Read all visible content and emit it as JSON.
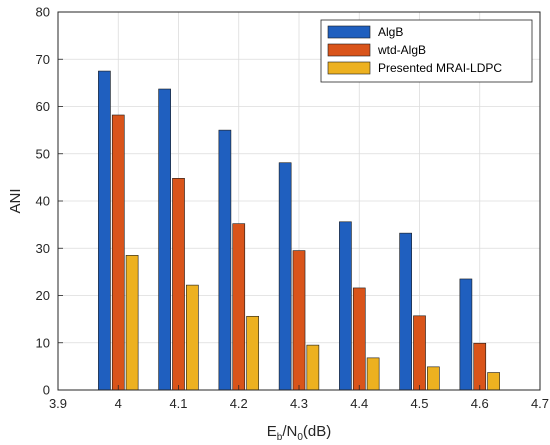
{
  "chart_data": {
    "type": "bar",
    "xlabel_main": "E",
    "xlabel_sub1": "b",
    "xlabel_mid": "/N",
    "xlabel_sub2": "0",
    "xlabel_unit": "(dB)",
    "ylabel": "ANI",
    "xlim": [
      3.9,
      4.7
    ],
    "ylim": [
      0,
      80
    ],
    "x_ticks": [
      "3.9",
      "4",
      "4.1",
      "4.2",
      "4.3",
      "4.4",
      "4.5",
      "4.6",
      "4.7"
    ],
    "y_ticks": [
      "0",
      "10",
      "20",
      "30",
      "40",
      "50",
      "60",
      "70",
      "80"
    ],
    "grid": true,
    "legend_position": "top-right",
    "categories": [
      4.0,
      4.1,
      4.2,
      4.3,
      4.4,
      4.5,
      4.6
    ],
    "series": [
      {
        "name": "AlgB",
        "color": "#1f5fbf",
        "values": [
          67.5,
          63.7,
          55.0,
          48.1,
          35.6,
          33.2,
          23.5
        ]
      },
      {
        "name": "wtd-AlgB",
        "color": "#d9541a",
        "values": [
          58.2,
          44.8,
          35.2,
          29.5,
          21.6,
          15.7,
          9.9
        ]
      },
      {
        "name": "Presented MRAI-LDPC",
        "color": "#edb120",
        "values": [
          28.5,
          22.2,
          15.6,
          9.5,
          6.8,
          4.9,
          3.7
        ]
      }
    ]
  }
}
